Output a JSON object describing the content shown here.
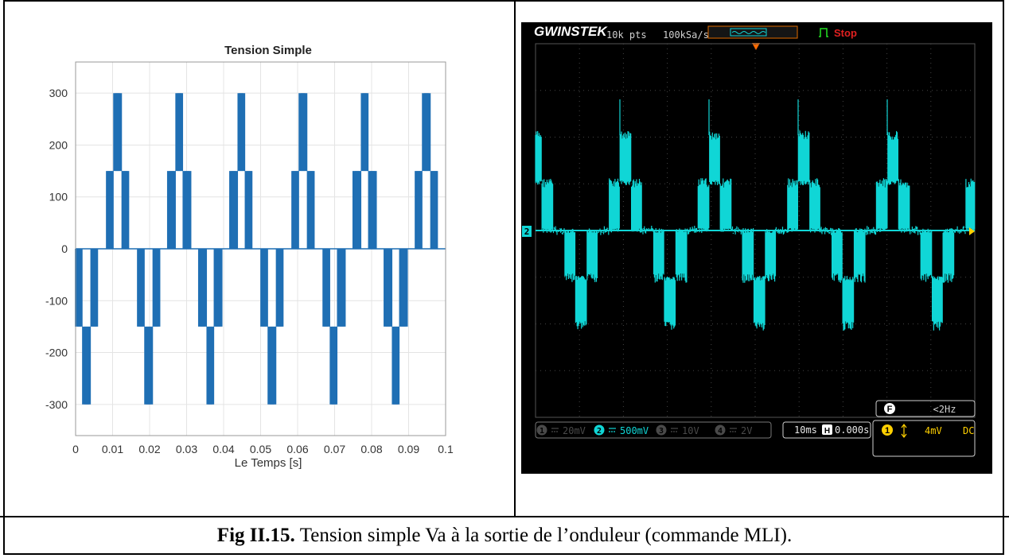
{
  "chart_data": [
    {
      "type": "line",
      "title": "Tension Simple",
      "xlabel": "Le Temps [s]",
      "ylabel": "",
      "xlim": [
        0,
        0.1
      ],
      "ylim": [
        -360,
        360
      ],
      "xticks": [
        "0",
        "0.01",
        "0.02",
        "0.03",
        "0.04",
        "0.05",
        "0.06",
        "0.07",
        "0.08",
        "0.09",
        "0.1"
      ],
      "yticks": [
        "300",
        "200",
        "100",
        "0",
        "-100",
        "-200",
        "-300"
      ],
      "grid": true,
      "series": [
        {
          "color": "#1f6fb4",
          "period_s": 0.0167,
          "levels": [
            0,
            150,
            300,
            150,
            0,
            -150,
            -300,
            -150
          ],
          "first_positive_peak_s": 0.0103
        }
      ]
    },
    {
      "type": "line",
      "brand": "GWINSTEK",
      "record_length": "10k pts",
      "sample_rate": "100kSa/s",
      "status": "Stop",
      "channel_marker": "2",
      "channels": [
        {
          "index": "1",
          "scale": "20mV",
          "active": false
        },
        {
          "index": "2",
          "scale": "500mV",
          "active": true
        },
        {
          "index": "3",
          "scale": "10V",
          "active": false
        },
        {
          "index": "4",
          "scale": "2V",
          "active": false
        }
      ],
      "timebase": "10ms",
      "h_label": "H",
      "h_position": "0.000s",
      "trigger_label": "F",
      "trigger_freq": "<2Hz",
      "trigger_channel": "1",
      "trigger_level": "4mV",
      "trigger_coupling": "DC",
      "colors": {
        "trace": "#10d6d6",
        "status": "#e02020",
        "trigger": "#ffd000",
        "marker": "#ff6a00",
        "logo": "#ffffff"
      },
      "series": [
        {
          "color": "#10d6d6",
          "period_ms": 16.7,
          "levels_div": [
            0,
            1,
            2,
            1,
            0,
            -1,
            -2,
            -1
          ]
        }
      ]
    }
  ],
  "caption": {
    "label": "Fig II.15.",
    "text": "Tension simple Va à la sortie de l’onduleur (commande MLI)."
  }
}
